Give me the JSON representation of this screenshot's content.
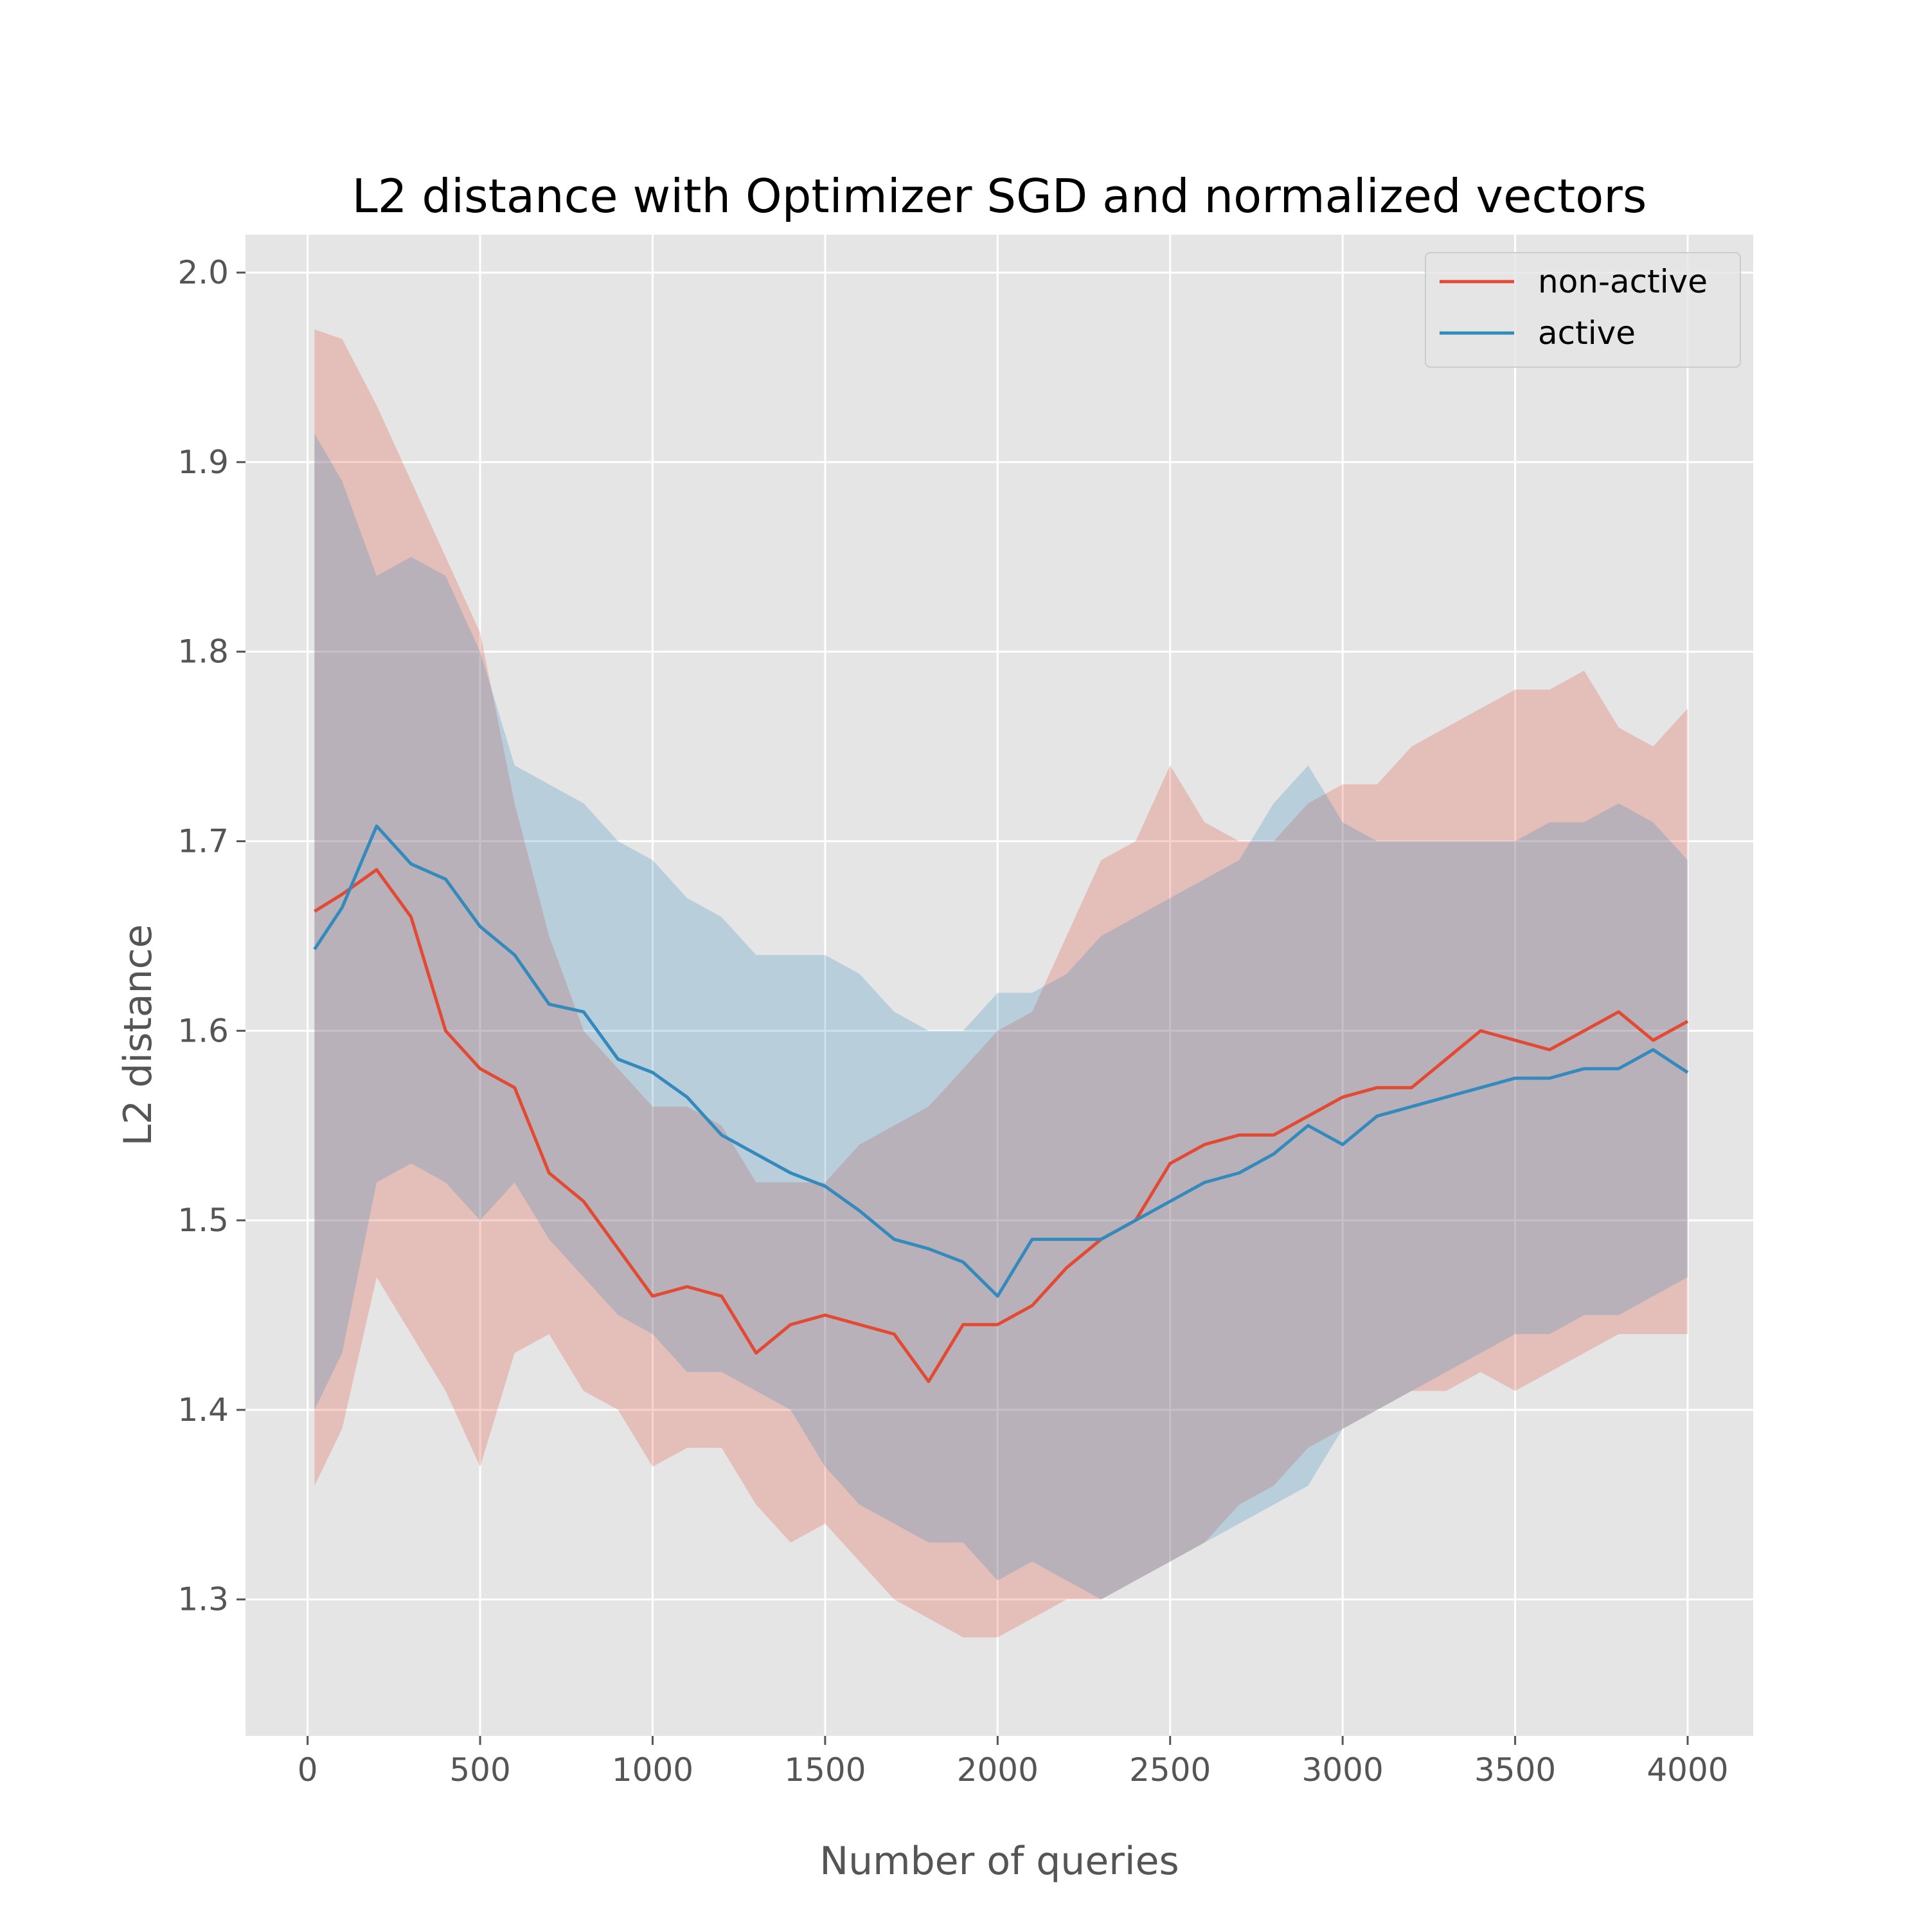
{
  "chart_data": {
    "type": "line",
    "title": "L2 distance with Optimizer SGD and normalized vectors",
    "xlabel": "Number of queries",
    "ylabel": "L2 distance",
    "xlim": [
      -180,
      4190
    ],
    "ylim": [
      1.228,
      2.02
    ],
    "xticks": [
      0,
      500,
      1000,
      1500,
      2000,
      2500,
      3000,
      3500,
      4000
    ],
    "yticks": [
      1.3,
      1.4,
      1.5,
      1.6,
      1.7,
      1.8,
      1.9,
      2.0
    ],
    "xtick_labels": [
      "0",
      "500",
      "1000",
      "1500",
      "2000",
      "2500",
      "3000",
      "3500",
      "4000"
    ],
    "ytick_labels": [
      "1.3",
      "1.4",
      "1.5",
      "1.6",
      "1.7",
      "1.8",
      "1.9",
      "2.0"
    ],
    "grid": true,
    "legend_position": "upper-right",
    "background": "#e5e5e5",
    "colors": {
      "non-active": "#e24a33",
      "active": "#348abd"
    },
    "band_opacity": 0.25,
    "x": [
      20,
      100,
      200,
      300,
      400,
      500,
      600,
      700,
      800,
      900,
      1000,
      1100,
      1200,
      1300,
      1400,
      1500,
      1600,
      1700,
      1800,
      1900,
      2000,
      2100,
      2200,
      2300,
      2400,
      2500,
      2600,
      2700,
      2800,
      2900,
      3000,
      3100,
      3200,
      3300,
      3400,
      3500,
      3600,
      3700,
      3800,
      3900,
      4000
    ],
    "series": [
      {
        "name": "non-active",
        "values": [
          1.663,
          1.672,
          1.685,
          1.66,
          1.6,
          1.58,
          1.57,
          1.525,
          1.51,
          1.485,
          1.46,
          1.465,
          1.46,
          1.43,
          1.445,
          1.45,
          1.445,
          1.44,
          1.415,
          1.445,
          1.445,
          1.455,
          1.475,
          1.49,
          1.5,
          1.53,
          1.54,
          1.545,
          1.545,
          1.555,
          1.565,
          1.57,
          1.57,
          1.585,
          1.6,
          1.595,
          1.59,
          1.6,
          1.61,
          1.595,
          1.605
        ],
        "upper": [
          1.97,
          1.965,
          1.93,
          1.89,
          1.85,
          1.81,
          1.72,
          1.65,
          1.6,
          1.58,
          1.56,
          1.56,
          1.55,
          1.52,
          1.52,
          1.52,
          1.54,
          1.55,
          1.56,
          1.58,
          1.6,
          1.61,
          1.65,
          1.69,
          1.7,
          1.74,
          1.71,
          1.7,
          1.7,
          1.72,
          1.73,
          1.73,
          1.75,
          1.76,
          1.77,
          1.78,
          1.78,
          1.79,
          1.76,
          1.75,
          1.77
        ],
        "lower": [
          1.36,
          1.39,
          1.47,
          1.44,
          1.41,
          1.37,
          1.43,
          1.44,
          1.41,
          1.4,
          1.37,
          1.38,
          1.38,
          1.35,
          1.33,
          1.34,
          1.32,
          1.3,
          1.29,
          1.28,
          1.28,
          1.29,
          1.3,
          1.3,
          1.31,
          1.32,
          1.33,
          1.35,
          1.36,
          1.38,
          1.39,
          1.4,
          1.41,
          1.41,
          1.42,
          1.41,
          1.42,
          1.43,
          1.44,
          1.44,
          1.44
        ]
      },
      {
        "name": "active",
        "values": [
          1.643,
          1.665,
          1.708,
          1.688,
          1.68,
          1.655,
          1.64,
          1.614,
          1.61,
          1.585,
          1.578,
          1.565,
          1.545,
          1.535,
          1.525,
          1.518,
          1.505,
          1.49,
          1.485,
          1.478,
          1.46,
          1.49,
          1.49,
          1.49,
          1.5,
          1.51,
          1.52,
          1.525,
          1.535,
          1.55,
          1.54,
          1.555,
          1.56,
          1.565,
          1.57,
          1.575,
          1.575,
          1.58,
          1.58,
          1.59,
          1.578
        ],
        "upper": [
          1.915,
          1.89,
          1.84,
          1.85,
          1.84,
          1.8,
          1.74,
          1.73,
          1.72,
          1.7,
          1.69,
          1.67,
          1.66,
          1.64,
          1.64,
          1.64,
          1.63,
          1.61,
          1.6,
          1.6,
          1.62,
          1.62,
          1.63,
          1.65,
          1.66,
          1.67,
          1.68,
          1.69,
          1.72,
          1.74,
          1.71,
          1.7,
          1.7,
          1.7,
          1.7,
          1.7,
          1.71,
          1.71,
          1.72,
          1.71,
          1.69
        ],
        "lower": [
          1.4,
          1.43,
          1.52,
          1.53,
          1.52,
          1.5,
          1.52,
          1.49,
          1.47,
          1.45,
          1.44,
          1.42,
          1.42,
          1.41,
          1.4,
          1.37,
          1.35,
          1.34,
          1.33,
          1.33,
          1.31,
          1.32,
          1.31,
          1.3,
          1.31,
          1.32,
          1.33,
          1.34,
          1.35,
          1.36,
          1.39,
          1.4,
          1.41,
          1.42,
          1.43,
          1.44,
          1.44,
          1.45,
          1.45,
          1.46,
          1.47
        ]
      }
    ]
  }
}
